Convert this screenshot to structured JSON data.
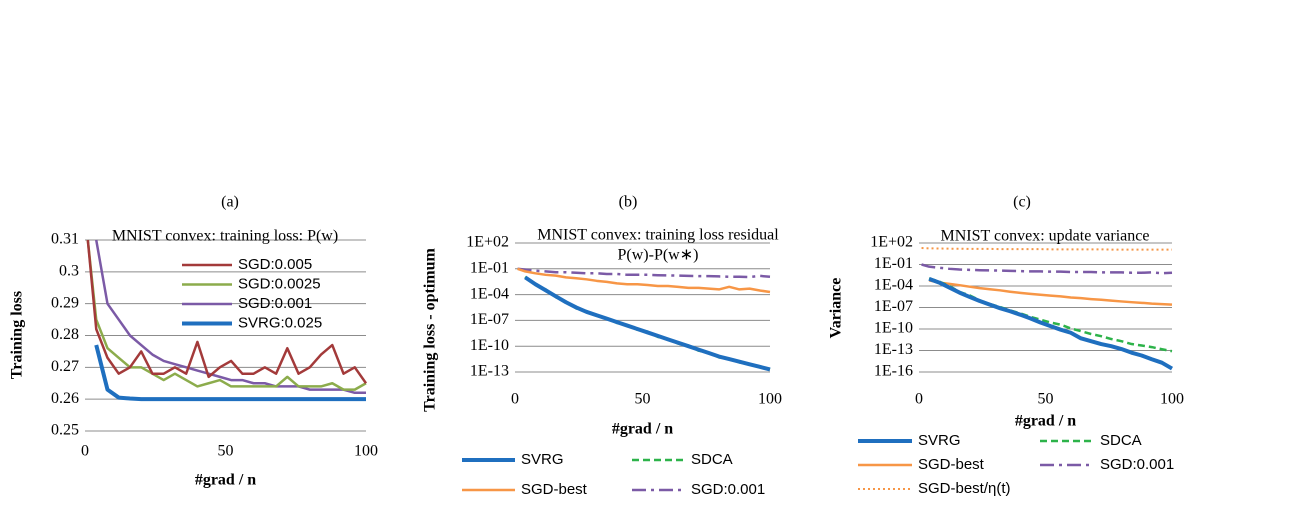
{
  "chart_data": [
    {
      "type": "line",
      "label": "(a)",
      "title": "MNIST convex: training loss: P(w)",
      "x_label": "#grad / n",
      "y_label": "Training loss",
      "x": [
        1,
        4,
        8,
        12,
        16,
        20,
        24,
        28,
        32,
        36,
        40,
        44,
        48,
        52,
        56,
        60,
        64,
        68,
        72,
        76,
        80,
        84,
        88,
        92,
        96,
        100
      ],
      "xlim": [
        0,
        100
      ],
      "xticks": [
        0,
        50,
        100
      ],
      "ylim": [
        0.25,
        0.31
      ],
      "yticks": [
        0.25,
        0.26,
        0.27,
        0.28,
        0.29,
        0.3,
        0.31
      ],
      "yscale": "linear",
      "grid": true,
      "legend": "inside-top-right",
      "series": [
        {
          "name": "SGD:0.005",
          "color": "#a33a3a",
          "linestyle": "solid",
          "linewidth": 2.5,
          "values": [
            0.31,
            0.282,
            0.273,
            0.268,
            0.27,
            0.275,
            0.268,
            0.268,
            0.27,
            0.268,
            0.278,
            0.267,
            0.27,
            0.272,
            0.268,
            0.268,
            0.27,
            0.268,
            0.276,
            0.268,
            0.27,
            0.274,
            0.277,
            0.268,
            0.27,
            0.265
          ]
        },
        {
          "name": "SGD:0.0025",
          "color": "#8cac4c",
          "linestyle": "solid",
          "linewidth": 2.5,
          "values": [
            0.31,
            0.285,
            0.276,
            0.273,
            0.27,
            0.27,
            0.268,
            0.266,
            0.268,
            0.266,
            0.264,
            0.265,
            0.266,
            0.264,
            0.264,
            0.264,
            0.264,
            0.264,
            0.267,
            0.264,
            0.264,
            0.264,
            0.265,
            0.263,
            0.263,
            0.265
          ]
        },
        {
          "name": "SGD:0.001",
          "color": "#7b5aa6",
          "linestyle": "solid",
          "linewidth": 2.5,
          "values": [
            null,
            0.31,
            0.29,
            0.285,
            0.28,
            0.277,
            0.274,
            0.272,
            0.271,
            0.27,
            0.269,
            0.268,
            0.267,
            0.266,
            0.266,
            0.265,
            0.265,
            0.264,
            0.264,
            0.264,
            0.263,
            0.263,
            0.263,
            0.263,
            0.262,
            0.262
          ]
        },
        {
          "name": "SVRG:0.025",
          "color": "#1f6fbf",
          "linestyle": "solid",
          "linewidth": 4,
          "values": [
            null,
            0.277,
            0.263,
            0.2605,
            0.2602,
            0.26,
            0.26,
            0.26,
            0.26,
            0.26,
            0.26,
            0.26,
            0.26,
            0.26,
            0.26,
            0.26,
            0.26,
            0.26,
            0.26,
            0.26,
            0.26,
            0.26,
            0.26,
            0.26,
            0.26,
            0.26
          ]
        }
      ]
    },
    {
      "type": "line",
      "label": "(b)",
      "title": "MNIST convex: training loss residual",
      "subtitle": "P(w)-P(w∗)",
      "x_label": "#grad / n",
      "y_label": "Training loss - optimum",
      "x": [
        1,
        4,
        8,
        12,
        16,
        20,
        24,
        28,
        32,
        36,
        40,
        44,
        48,
        52,
        56,
        60,
        64,
        68,
        72,
        76,
        80,
        84,
        88,
        92,
        96,
        100
      ],
      "xlim": [
        0,
        100
      ],
      "xticks": [
        0,
        50,
        100
      ],
      "ylim": [
        1e-13,
        100
      ],
      "yticks": [
        {
          "value": 100,
          "label": "1E+02"
        },
        {
          "value": 0.1,
          "label": "1E-01"
        },
        {
          "value": 0.0001,
          "label": "1E-04"
        },
        {
          "value": 1e-07,
          "label": "1E-07"
        },
        {
          "value": 1e-10,
          "label": "1E-10"
        },
        {
          "value": 1e-13,
          "label": "1E-13"
        }
      ],
      "yscale": "log",
      "grid": true,
      "legend": "bottom",
      "series": [
        {
          "name": "SVRG",
          "color": "#1f6fbf",
          "linestyle": "solid",
          "linewidth": 4,
          "values": [
            null,
            0.01,
            0.0016,
            0.00032,
            6.3e-05,
            1.3e-05,
            3.2e-06,
            1e-06,
            4e-07,
            1.6e-07,
            6.3e-08,
            2.5e-08,
            1e-08,
            4e-09,
            1.6e-09,
            6.3e-10,
            2.5e-10,
            1e-10,
            4e-11,
            1.6e-11,
            6.3e-12,
            3.2e-12,
            1.6e-12,
            7.9e-13,
            4e-13,
            2e-13
          ]
        },
        {
          "name": "SDCA",
          "color": "#2db34a",
          "linestyle": "dashed",
          "linewidth": 2.5,
          "values": [
            null,
            0.012,
            0.0014,
            0.0004,
            5e-05,
            1.5e-05,
            2.5e-06,
            1.2e-06,
            3.5e-07,
            1.8e-07,
            5e-08,
            3e-08,
            8e-09,
            5e-09,
            1.2e-09,
            7e-10,
            2e-10,
            1.2e-10,
            3e-11,
            1.8e-11,
            5e-12,
            3.5e-12,
            1.3e-12,
            8e-13,
            3.5e-13,
            2e-13
          ]
        },
        {
          "name": "SGD-best",
          "color": "#f79646",
          "linestyle": "solid",
          "linewidth": 2.5,
          "values": [
            0.1,
            0.05,
            0.03,
            0.02,
            0.016,
            0.01,
            0.008,
            0.006,
            0.004,
            0.003,
            0.002,
            0.0016,
            0.0016,
            0.0013,
            0.001,
            0.001,
            0.0008,
            0.0006,
            0.0006,
            0.0005,
            0.0004,
            0.0008,
            0.0004,
            0.0005,
            0.0003,
            0.0002
          ]
        },
        {
          "name": "SGD:0.001",
          "color": "#7b5aa6",
          "linestyle": "dashdot",
          "linewidth": 2.5,
          "values": [
            0.1,
            0.08,
            0.06,
            0.05,
            0.04,
            0.04,
            0.035,
            0.03,
            0.03,
            0.025,
            0.025,
            0.02,
            0.02,
            0.02,
            0.018,
            0.017,
            0.016,
            0.015,
            0.014,
            0.014,
            0.013,
            0.012,
            0.012,
            0.011,
            0.015,
            0.012
          ]
        }
      ]
    },
    {
      "type": "line",
      "label": "(c)",
      "title": "MNIST convex: update variance",
      "x_label": "#grad / n",
      "y_label": "Variance",
      "x": [
        1,
        4,
        8,
        12,
        16,
        20,
        24,
        28,
        32,
        36,
        40,
        44,
        48,
        52,
        56,
        60,
        64,
        68,
        72,
        76,
        80,
        84,
        88,
        92,
        96,
        100
      ],
      "xlim": [
        0,
        100
      ],
      "xticks": [
        0,
        50,
        100
      ],
      "ylim": [
        1e-16,
        100
      ],
      "yticks": [
        {
          "value": 100,
          "label": "1E+02"
        },
        {
          "value": 0.1,
          "label": "1E-01"
        },
        {
          "value": 0.0001,
          "label": "1E-04"
        },
        {
          "value": 1e-07,
          "label": "1E-07"
        },
        {
          "value": 1e-10,
          "label": "1E-10"
        },
        {
          "value": 1e-13,
          "label": "1E-13"
        },
        {
          "value": 1e-16,
          "label": "1E-16"
        }
      ],
      "yscale": "log",
      "grid": true,
      "legend": "bottom",
      "series": [
        {
          "name": "SVRG",
          "color": "#1f6fbf",
          "linestyle": "solid",
          "linewidth": 4,
          "values": [
            null,
            0.001,
            0.0003,
            6e-05,
            1.2e-05,
            3e-06,
            8e-07,
            2.5e-07,
            8e-08,
            3e-08,
            1e-08,
            3e-09,
            8e-10,
            2.5e-10,
            8e-11,
            3e-11,
            5e-12,
            2e-12,
            8e-13,
            4e-13,
            1.6e-13,
            5e-14,
            2e-14,
            6e-15,
            2e-15,
            3e-16
          ]
        },
        {
          "name": "SDCA",
          "color": "#2db34a",
          "linestyle": "dashed",
          "linewidth": 2.5,
          "values": [
            null,
            0.0012,
            0.0004,
            0.0001,
            1.5e-05,
            5e-06,
            1e-06,
            3e-07,
            1.2e-07,
            4e-08,
            1.5e-08,
            5e-09,
            2e-09,
            8e-10,
            4e-10,
            1.2e-10,
            5e-11,
            2e-11,
            1e-11,
            4e-12,
            2e-12,
            8e-13,
            5e-13,
            3e-13,
            1.5e-13,
            8e-14
          ]
        },
        {
          "name": "SGD-best",
          "color": "#f79646",
          "linestyle": "solid",
          "linewidth": 2.5,
          "values": [
            null,
            0.0006,
            0.0003,
            0.0002,
            0.00013,
            8e-05,
            5e-05,
            3.5e-05,
            2.5e-05,
            1.6e-05,
            1.1e-05,
            8e-06,
            6e-06,
            4.5e-06,
            3.5e-06,
            2.5e-06,
            2e-06,
            1.5e-06,
            1.2e-06,
            9e-07,
            7e-07,
            5.5e-07,
            4.5e-07,
            3.5e-07,
            3e-07,
            2.5e-07
          ]
        },
        {
          "name": "SGD:0.001",
          "color": "#7b5aa6",
          "linestyle": "dashdot",
          "linewidth": 2.5,
          "values": [
            0.1,
            0.05,
            0.035,
            0.025,
            0.02,
            0.018,
            0.016,
            0.015,
            0.014,
            0.013,
            0.012,
            0.011,
            0.011,
            0.01,
            0.01,
            0.009,
            0.009,
            0.009,
            0.008,
            0.008,
            0.008,
            0.007,
            0.007,
            0.008,
            0.006,
            0.007
          ]
        },
        {
          "name": "SGD-best/η(t)",
          "color": "#f79646",
          "linestyle": "dotted",
          "linewidth": 2,
          "values": [
            20,
            18,
            17,
            16,
            16,
            15,
            15,
            15,
            14,
            14,
            14,
            14,
            14,
            13,
            13,
            13,
            13,
            13,
            13,
            12,
            12,
            12,
            12,
            12,
            12,
            12
          ]
        }
      ]
    }
  ]
}
